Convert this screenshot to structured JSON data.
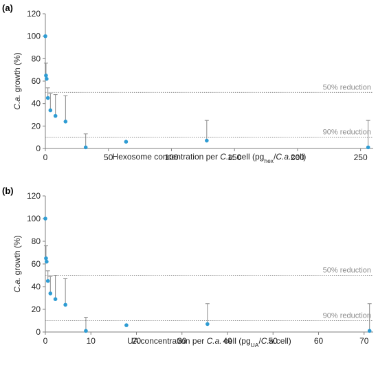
{
  "colors": {
    "point": "#2e9cd3",
    "error": "#8a8a8a",
    "axis": "#7f7f7f",
    "refline": "#8c8c8c"
  },
  "chart_data": [
    {
      "panel": "(a)",
      "type": "scatter",
      "xlim": [
        0,
        260
      ],
      "ylim": [
        0,
        120
      ],
      "xticks": [
        0,
        50,
        100,
        150,
        200,
        250
      ],
      "yticks": [
        0,
        20,
        40,
        60,
        80,
        100,
        120
      ],
      "xlabel": {
        "parts": [
          {
            "t": "Hexosome concentration per ",
            "i": false
          },
          {
            "t": "C.a.",
            "i": true
          },
          {
            "t": " cell (pg",
            "i": false
          },
          {
            "t": "hex",
            "i": false,
            "sub": true
          },
          {
            "t": "/",
            "i": false
          },
          {
            "t": "C.a.",
            "i": true
          },
          {
            "t": "cell)",
            "i": false
          }
        ]
      },
      "ylabel": {
        "parts": [
          {
            "t": "C.a.",
            "i": true
          },
          {
            "t": " growth (%)",
            "i": false
          }
        ]
      },
      "reference_lines": [
        {
          "y": 50,
          "label": "50% reduction"
        },
        {
          "y": 10,
          "label": "90% reduction"
        }
      ],
      "points": [
        {
          "x": 0,
          "y": 100,
          "err": 0
        },
        {
          "x": 0.5,
          "y": 65,
          "err": 11
        },
        {
          "x": 1,
          "y": 62,
          "err": 0
        },
        {
          "x": 2,
          "y": 45,
          "err": 9
        },
        {
          "x": 4,
          "y": 34,
          "err": 15
        },
        {
          "x": 8,
          "y": 29,
          "err": 19
        },
        {
          "x": 16,
          "y": 24,
          "err": 23
        },
        {
          "x": 32,
          "y": 1,
          "err": 12
        },
        {
          "x": 64,
          "y": 6,
          "err": 0
        },
        {
          "x": 128,
          "y": 7,
          "err": 18
        },
        {
          "x": 256,
          "y": 1,
          "err": 24
        }
      ]
    },
    {
      "panel": "(b)",
      "type": "scatter",
      "xlim": [
        0,
        72
      ],
      "ylim": [
        0,
        120
      ],
      "xticks": [
        0,
        10,
        20,
        30,
        40,
        50,
        60,
        70
      ],
      "yticks": [
        0,
        20,
        40,
        60,
        80,
        100,
        120
      ],
      "xlabel": {
        "parts": [
          {
            "t": "UA concentration per ",
            "i": false
          },
          {
            "t": "C.a.",
            "i": true
          },
          {
            "t": " cell (pg",
            "i": false
          },
          {
            "t": "UA",
            "i": false,
            "sub": true
          },
          {
            "t": "/",
            "i": false
          },
          {
            "t": "C.a.",
            "i": true
          },
          {
            "t": "cell)",
            "i": false
          }
        ]
      },
      "ylabel": {
        "parts": [
          {
            "t": "C.a.",
            "i": true
          },
          {
            "t": " growth (%)",
            "i": false
          }
        ]
      },
      "reference_lines": [
        {
          "y": 50,
          "label": "50% reduction"
        },
        {
          "y": 10,
          "label": "90% reduction"
        }
      ],
      "points": [
        {
          "x": 0,
          "y": 100,
          "err": 0
        },
        {
          "x": 0.14,
          "y": 65,
          "err": 11
        },
        {
          "x": 0.28,
          "y": 62,
          "err": 0
        },
        {
          "x": 0.56,
          "y": 45,
          "err": 9
        },
        {
          "x": 1.1,
          "y": 34,
          "err": 15
        },
        {
          "x": 2.2,
          "y": 29,
          "err": 21
        },
        {
          "x": 4.4,
          "y": 24,
          "err": 23
        },
        {
          "x": 8.9,
          "y": 1,
          "err": 12
        },
        {
          "x": 17.8,
          "y": 6,
          "err": 0
        },
        {
          "x": 35.6,
          "y": 7,
          "err": 18
        },
        {
          "x": 71.2,
          "y": 1,
          "err": 24
        }
      ]
    }
  ]
}
